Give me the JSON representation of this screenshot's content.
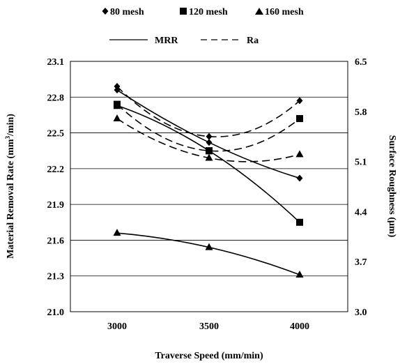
{
  "chart_data": {
    "type": "line",
    "xlabel": "Traverse Speed (mm/min)",
    "ylabel_left_main": "Material Removal Rate (mm",
    "ylabel_left_sup": "3",
    "ylabel_left_tail": "/min)",
    "ylabel_right": "Surface Roughness (µm)",
    "x": [
      3000,
      3500,
      4000
    ],
    "x_tick_labels": [
      "3000",
      "3500",
      "4000"
    ],
    "y_left_lim": [
      21.0,
      23.1
    ],
    "y_left_ticks": [
      "21.0",
      "21.3",
      "21.6",
      "21.9",
      "22.2",
      "22.5",
      "22.8",
      "23.1"
    ],
    "y_right_lim": [
      3.0,
      6.5
    ],
    "y_right_ticks": [
      "3.0",
      "3.7",
      "4.4",
      "5.1",
      "5.8",
      "6.5"
    ],
    "grid": true,
    "legend_placement": "top",
    "legend_mesh": [
      {
        "marker": "diamond",
        "label": "80 mesh"
      },
      {
        "marker": "square",
        "label": "120 mesh"
      },
      {
        "marker": "triangle",
        "label": "160 mesh"
      }
    ],
    "legend_lines": [
      {
        "style": "solid",
        "label": "MRR"
      },
      {
        "style": "dashed",
        "label": "Ra"
      }
    ],
    "series": [
      {
        "name": "80 mesh MRR",
        "axis": "left",
        "style": "solid",
        "marker": "diamond",
        "values": [
          22.86,
          22.42,
          22.12
        ]
      },
      {
        "name": "120 mesh MRR",
        "axis": "left",
        "style": "solid",
        "marker": "square",
        "values": [
          22.73,
          22.35,
          21.75
        ]
      },
      {
        "name": "160 mesh MRR",
        "axis": "left",
        "style": "solid",
        "marker": "triangle",
        "values": [
          21.66,
          21.54,
          21.31
        ]
      },
      {
        "name": "80 mesh Ra",
        "axis": "right",
        "style": "dashed",
        "marker": "diamond",
        "values": [
          6.15,
          5.45,
          5.95
        ]
      },
      {
        "name": "120 mesh Ra",
        "axis": "right",
        "style": "dashed",
        "marker": "square",
        "values": [
          5.9,
          5.25,
          5.7
        ]
      },
      {
        "name": "160 mesh Ra",
        "axis": "right",
        "style": "dashed",
        "marker": "triangle",
        "values": [
          5.7,
          5.15,
          5.2
        ]
      }
    ]
  }
}
